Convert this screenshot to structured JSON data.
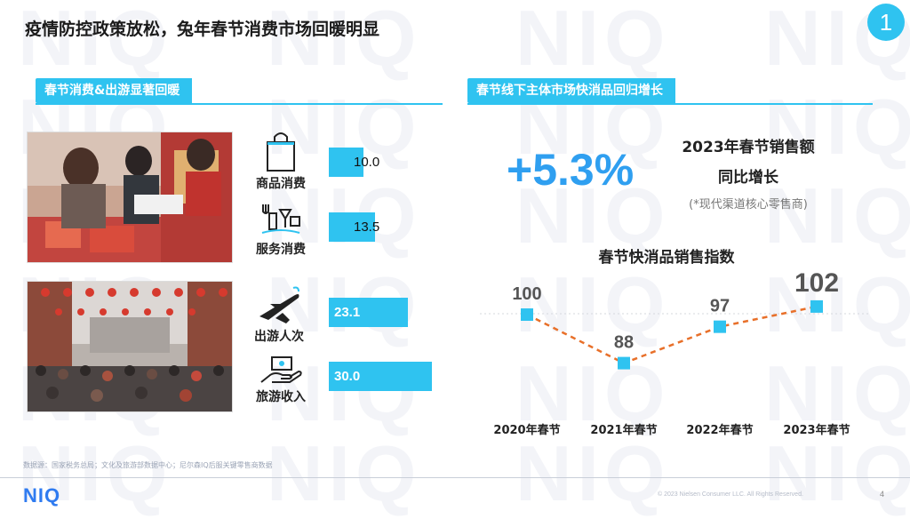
{
  "title": "疫情防控政策放松，兔年春节消费市场回暖明显",
  "badge": "1",
  "watermark": "NIQ",
  "left_section": {
    "header": "春节消费&出游显著回暖",
    "metrics": [
      {
        "label": "商品消费",
        "icon": "shopping-bag-icon",
        "value": 10.0,
        "value_text": "10.0"
      },
      {
        "label": "服务消费",
        "icon": "dining-icon",
        "value": 13.5,
        "value_text": "13.5"
      },
      {
        "label": "出游人次",
        "icon": "airplane-icon",
        "value": 23.1,
        "value_text": "23.1"
      },
      {
        "label": "旅游收入",
        "icon": "money-hand-icon",
        "value": 30.0,
        "value_text": "30.0"
      }
    ]
  },
  "right_section": {
    "header": "春节线下主体市场快消品回归增长",
    "kpi_value": "+5.3%",
    "kpi_line1": "2023年春节销售额",
    "kpi_line2": "同比增长",
    "kpi_note": "(*现代渠道核心零售商)",
    "chart_title": "春节快消品销售指数"
  },
  "chart_data": {
    "type": "line",
    "title": "春节快消品销售指数",
    "categories": [
      "2020年春节",
      "2021年春节",
      "2022年春节",
      "2023年春节"
    ],
    "values": [
      100,
      88,
      97,
      102
    ],
    "value_labels": [
      "100",
      "88",
      "97",
      "102"
    ],
    "reference_line": 100,
    "line_color": "#e8702a",
    "marker_color": "#2fc3f0"
  },
  "colors": {
    "accent": "#2fc3f0",
    "kpi": "#2f9ff0",
    "line": "#e8702a"
  },
  "footer": {
    "source": "数据源：国家税务总局；文化及旅游部数据中心；尼尔森IQ后服关键零售商数据",
    "logo": "NIQ",
    "copyright": "© 2023 Nielsen Consumer LLC. All Rights Reserved.",
    "page": "4"
  }
}
